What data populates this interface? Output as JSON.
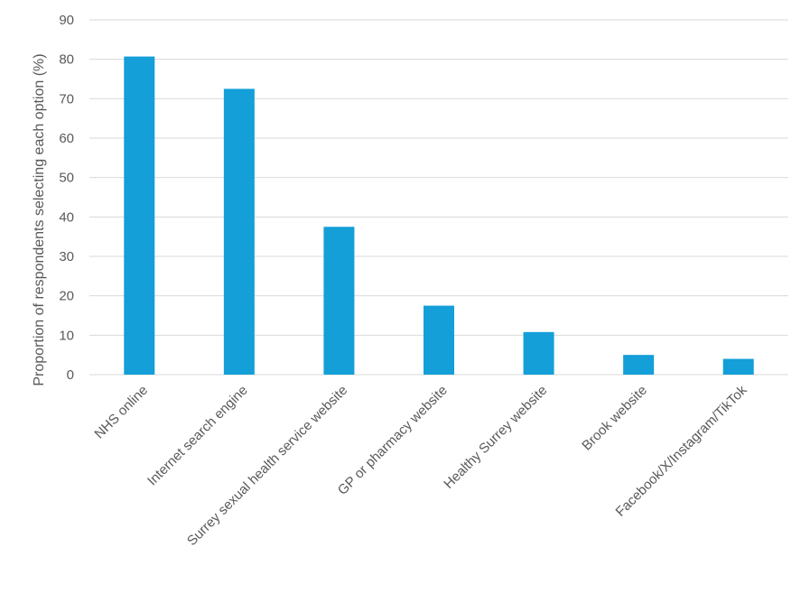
{
  "chart_data": {
    "type": "bar",
    "title": "",
    "xlabel": "",
    "ylabel": "Proportion of respondents selecting each option (%)",
    "ylim": [
      0,
      90
    ],
    "yticks": [
      0,
      10,
      20,
      30,
      40,
      50,
      60,
      70,
      80,
      90
    ],
    "categories": [
      "NHS online",
      "Internet search engine",
      "Surrey sexual health service website",
      "GP or pharmacy website",
      "Healthy Surrey website",
      "Brook website",
      "Facebook/X/Instagram/TikTok"
    ],
    "values": [
      80.7,
      72.5,
      37.5,
      17.5,
      10.8,
      5.0,
      4.0
    ],
    "grid": true,
    "legend": "none",
    "bar_color": "#149FD8",
    "grid_color": "#D9D9D9",
    "text_color": "#595959"
  }
}
